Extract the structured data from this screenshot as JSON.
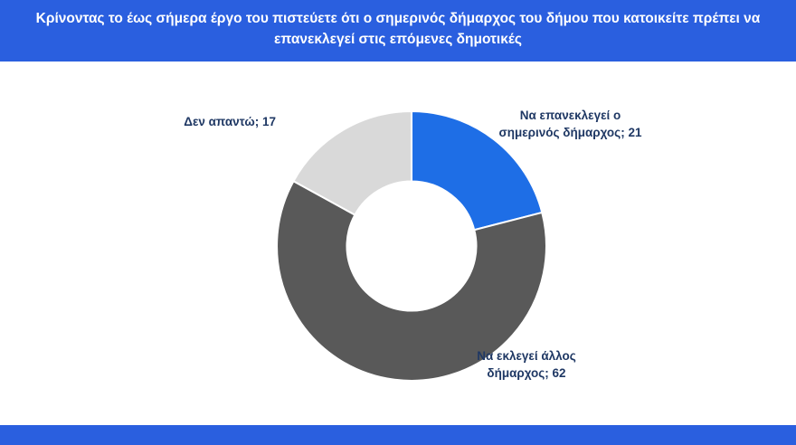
{
  "colors": {
    "banner_blue": "#2a5fdf",
    "bottom_bar_blue": "#2a5fdf",
    "label_text": "#1f3864",
    "slice_blue": "#1e6ee6",
    "slice_dark_gray": "#595959",
    "slice_light_gray": "#d9d9d9"
  },
  "chart_data": {
    "type": "pie",
    "subtype": "donut",
    "title": "Κρίνοντας το έως σήμερα έργο του πιστεύετε ότι ο σημερινός δήμαρχος του δήμου που κατοικείτε πρέπει να επανεκλεγεί στις επόμενες δημοτικές",
    "legend": "none",
    "start_angle_deg": 0,
    "direction": "clockwise",
    "hole_ratio": 0.48,
    "total": 100,
    "slices": [
      {
        "label": "Να επανεκλεγεί ο σημερινός δήμαρχος",
        "value": 21,
        "color": "#1e6ee6",
        "display": "Να επανεκλεγεί ο σημερινός δήμαρχος; 21"
      },
      {
        "label": "Να εκλεγεί άλλος δήμαρχος",
        "value": 62,
        "color": "#595959",
        "display": "Να εκλεγεί άλλος δήμαρχος; 62"
      },
      {
        "label": "Δεν απαντώ",
        "value": 17,
        "color": "#d9d9d9",
        "display": "Δεν απαντώ; 17"
      }
    ]
  }
}
